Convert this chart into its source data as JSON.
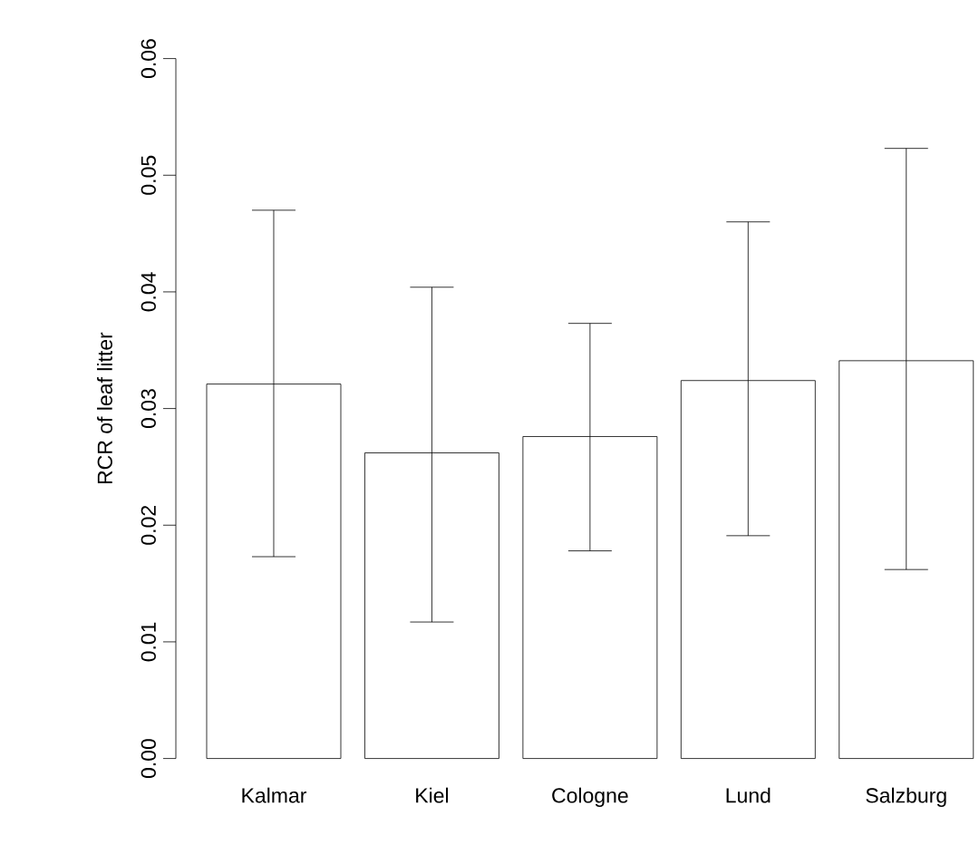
{
  "chart_data": {
    "type": "bar",
    "ylabel": "RCR of leaf litter",
    "categories": [
      "Kalmar",
      "Kiel",
      "Cologne",
      "Lund",
      "Salzburg"
    ],
    "values": [
      0.0321,
      0.0262,
      0.0276,
      0.0324,
      0.0341
    ],
    "errors": [
      [
        0.0173,
        0.047
      ],
      [
        0.0117,
        0.0404
      ],
      [
        0.0178,
        0.0373
      ],
      [
        0.0191,
        0.046
      ],
      [
        0.0162,
        0.0523
      ]
    ],
    "color": "#ffffff",
    "ylim": [
      0,
      0.06
    ],
    "yticks": [
      {
        "value": 0,
        "label": "0.00"
      },
      {
        "value": 0.01,
        "label": "0.01"
      },
      {
        "value": 0.02,
        "label": "0.02"
      },
      {
        "value": 0.03,
        "label": "0.03"
      },
      {
        "value": 0.04,
        "label": "0.04"
      },
      {
        "value": 0.05,
        "label": "0.05"
      },
      {
        "value": 0.06,
        "label": "0.06"
      }
    ],
    "grid": false
  }
}
